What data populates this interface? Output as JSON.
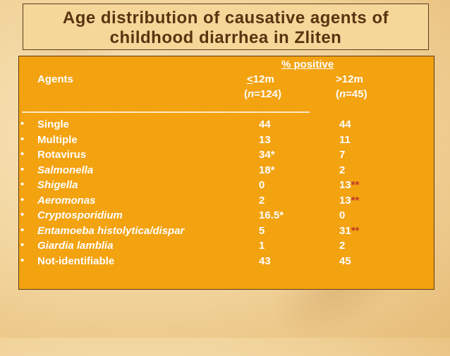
{
  "slide": {
    "title_line1": "Age distribution of causative agents of",
    "title_line2": "childhood diarrhea in Zliten"
  },
  "table": {
    "group_header": "% positive",
    "agents_header": "Agents",
    "col1_header": "<12m",
    "col1_header_underlined_char": "<",
    "col1_header_rest": "12m",
    "col2_header": ">12m",
    "col1_n_open": "(",
    "col1_n_var": "n",
    "col1_n_rest": "=124)",
    "col2_n_open": "(",
    "col2_n_var": "n",
    "col2_n_rest": "=45)",
    "divider": "--------------------------------------------------------------------------------------------------",
    "bullet": "•",
    "rows": [
      {
        "agent": "Single",
        "v1": "44",
        "v1_mark": "",
        "v2": "44",
        "v2_mark": ""
      },
      {
        "agent": "Multiple",
        "v1": "13",
        "v1_mark": "",
        "v2": "11",
        "v2_mark": ""
      },
      {
        "agent": "Rotavirus",
        "v1": "34",
        "v1_mark": "*",
        "v2": "7",
        "v2_mark": ""
      },
      {
        "agent": "Salmonella",
        "v1": "18",
        "v1_mark": "*",
        "v2": "2",
        "v2_mark": ""
      },
      {
        "agent": "Shigella",
        "v1": "0",
        "v1_mark": "",
        "v2": "13",
        "v2_mark": "**"
      },
      {
        "agent": "Aeromonas",
        "v1": "2",
        "v1_mark": "",
        "v2": "13",
        "v2_mark": "**"
      },
      {
        "agent": "Cryptosporidium",
        "v1": "16.5",
        "v1_mark": "*",
        "v2": "0",
        "v2_mark": ""
      },
      {
        "agent": "Entamoeba histolytica/dispar",
        "v1": "5",
        "v1_mark": "",
        "v2": "31",
        "v2_mark": "**"
      },
      {
        "agent": "Giardia lamblia",
        "v1": "1",
        "v1_mark": "",
        "v2": "2",
        "v2_mark": ""
      },
      {
        "agent": "Not-identifiable",
        "v1": "43",
        "v1_mark": "",
        "v2": "45",
        "v2_mark": ""
      }
    ]
  },
  "colors": {
    "content_bg": "#f3a210",
    "title_text": "#5a3410",
    "asterisk_red": "#c0392b"
  }
}
